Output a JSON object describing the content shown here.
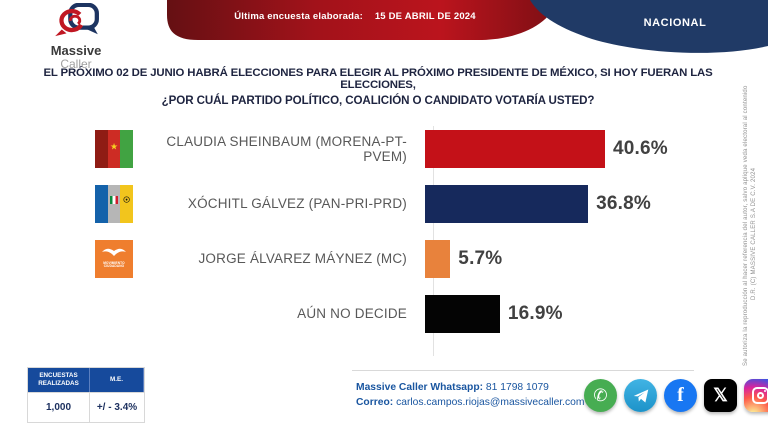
{
  "header": {
    "logo": {
      "line1": "Massive",
      "line2": "Caller"
    },
    "banner_label": "Última encuesta elaborada:",
    "banner_date": "15 DE ABRIL DE 2024",
    "region_badge": "NACIONAL",
    "colors": {
      "banner_red": "#a3131b",
      "badge_blue": "#203a66"
    }
  },
  "question": {
    "line1": "EL PRÓXIMO 02 DE JUNIO HABRÁ ELECCIONES PARA ELEGIR AL PRÓXIMO PRESIDENTE DE MÉXICO, SI HOY FUERAN LAS ELECCIONES,",
    "line2": "¿POR CUÁL PARTIDO POLÍTICO, COALICIÓN O CANDIDATO VOTARÍA USTED?"
  },
  "chart_data": {
    "type": "bar",
    "orientation": "horizontal",
    "title": "EL PRÓXIMO 02 DE JUNIO HABRÁ ELECCIONES PARA ELEGIR AL PRÓXIMO PRESIDENTE DE MÉXICO, SI HOY FUERAN LAS ELECCIONES, ¿POR CUÁL PARTIDO POLÍTICO, COALICIÓN O CANDIDATO VOTARÍA USTED?",
    "categories": [
      "CLAUDIA SHEINBAUM (MORENA-PT-PVEM)",
      "XÓCHITL GÁLVEZ (PAN-PRI-PRD)",
      "JORGE ÁLVAREZ MÁYNEZ (MC)",
      "AÚN NO DECIDE"
    ],
    "values": [
      40.6,
      36.8,
      5.7,
      16.9
    ],
    "value_labels": [
      "40.6%",
      "36.8%",
      "5.7%",
      "16.9%"
    ],
    "bar_colors": [
      "#c41118",
      "#16295c",
      "#e8823c",
      "#040404"
    ],
    "xlim": [
      0,
      45
    ],
    "grid": false,
    "legend": false,
    "party_logos": [
      {
        "name": "morena-pt-pvem",
        "stripe_colors": [
          "#8f1c14",
          "#cd2c24",
          "#41a342"
        ]
      },
      {
        "name": "pan-pri-prd",
        "stripe_colors": [
          "#1462aa",
          "#b6b6b6",
          "#f2c51d"
        ]
      },
      {
        "name": "movimiento-ciudadano",
        "stripe_colors": [
          "#ef7e2e"
        ],
        "text": "MOVIMIENTO CIUDADANO"
      },
      null
    ]
  },
  "stats_table": {
    "headers": [
      "ENCUESTAS REALIZADAS",
      "M.E."
    ],
    "values": [
      "1,000",
      "+/ - 3.4%"
    ]
  },
  "contact": {
    "whatsapp_label": "Massive Caller Whatsapp:",
    "whatsapp_number": "81 1798 1079",
    "email_label": "Correo:",
    "email": "carlos.campos.riojas@massivecaller.com"
  },
  "social_icons": [
    "whatsapp",
    "telegram",
    "facebook",
    "x",
    "instagram"
  ],
  "copyright": {
    "line1": "D.R. (C) MASSIVE CALLER S.A DE C.V. 2024",
    "line2": "Se autoriza la reproducción al hacer referencia del autor, salvo aplique veda electoral al contenido"
  }
}
